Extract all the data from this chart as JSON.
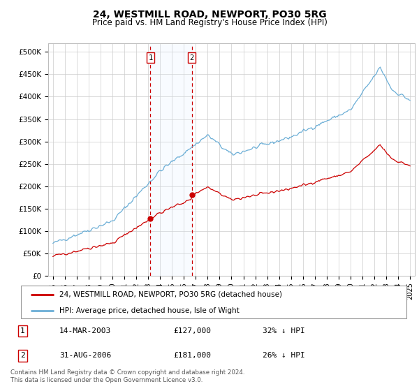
{
  "title": "24, WESTMILL ROAD, NEWPORT, PO30 5RG",
  "subtitle": "Price paid vs. HM Land Registry's House Price Index (HPI)",
  "yticks": [
    0,
    50000,
    100000,
    150000,
    200000,
    250000,
    300000,
    350000,
    400000,
    450000,
    500000
  ],
  "ytick_labels": [
    "£0",
    "£50K",
    "£100K",
    "£150K",
    "£200K",
    "£250K",
    "£300K",
    "£350K",
    "£400K",
    "£450K",
    "£500K"
  ],
  "xlim_start": 1994.6,
  "xlim_end": 2025.4,
  "ylim": [
    0,
    520000
  ],
  "hpi_color": "#6baed6",
  "price_color": "#cc0000",
  "transaction1_date": 2003.19,
  "transaction1_price": 127000,
  "transaction2_date": 2006.66,
  "transaction2_price": 181000,
  "legend_label1": "24, WESTMILL ROAD, NEWPORT, PO30 5RG (detached house)",
  "legend_label2": "HPI: Average price, detached house, Isle of Wight",
  "note_date1": "14-MAR-2003",
  "note_price1": "£127,000",
  "note_hpi1": "32% ↓ HPI",
  "note_date2": "31-AUG-2006",
  "note_price2": "£181,000",
  "note_hpi2": "26% ↓ HPI",
  "footer": "Contains HM Land Registry data © Crown copyright and database right 2024.\nThis data is licensed under the Open Government Licence v3.0.",
  "background_color": "#ffffff",
  "grid_color": "#cccccc",
  "shade_color": "#ddeeff"
}
